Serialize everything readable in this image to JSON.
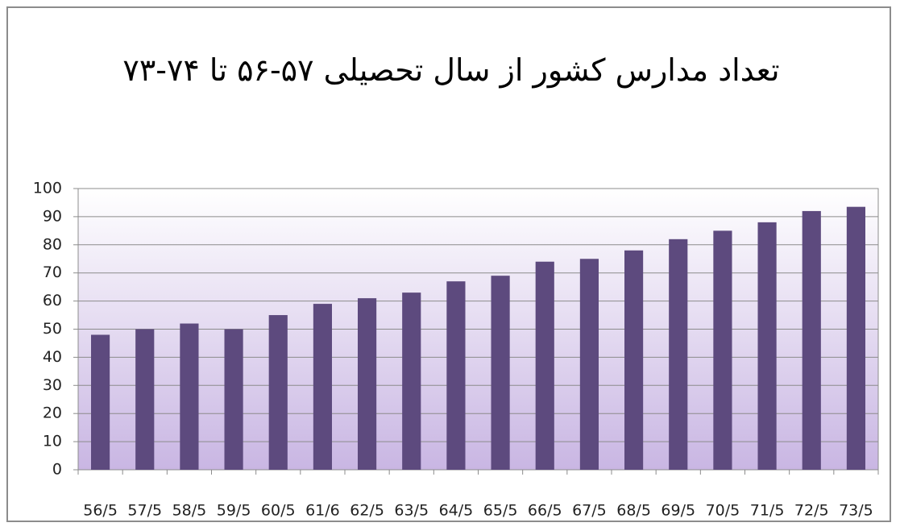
{
  "chart_data": {
    "type": "bar",
    "title": "تعداد مدارس کشور از سال تحصیلی ۵۷-۵۶ تا ۷۴-۷۳",
    "categories": [
      "56/5",
      "57/5",
      "58/5",
      "59/5",
      "60/5",
      "61/6",
      "62/5",
      "63/5",
      "64/5",
      "65/5",
      "66/5",
      "67/5",
      "68/5",
      "69/5",
      "70/5",
      "71/5",
      "72/5",
      "73/5"
    ],
    "values": [
      48,
      50,
      52,
      50,
      55,
      59,
      61,
      63,
      67,
      69,
      74,
      75,
      78,
      82,
      85,
      88,
      92,
      93.5
    ],
    "color": "#5d4a7e",
    "ylim": [
      0,
      100
    ],
    "yticks": [
      0,
      10,
      20,
      30,
      40,
      50,
      60,
      70,
      80,
      90,
      100
    ],
    "grid": true
  }
}
